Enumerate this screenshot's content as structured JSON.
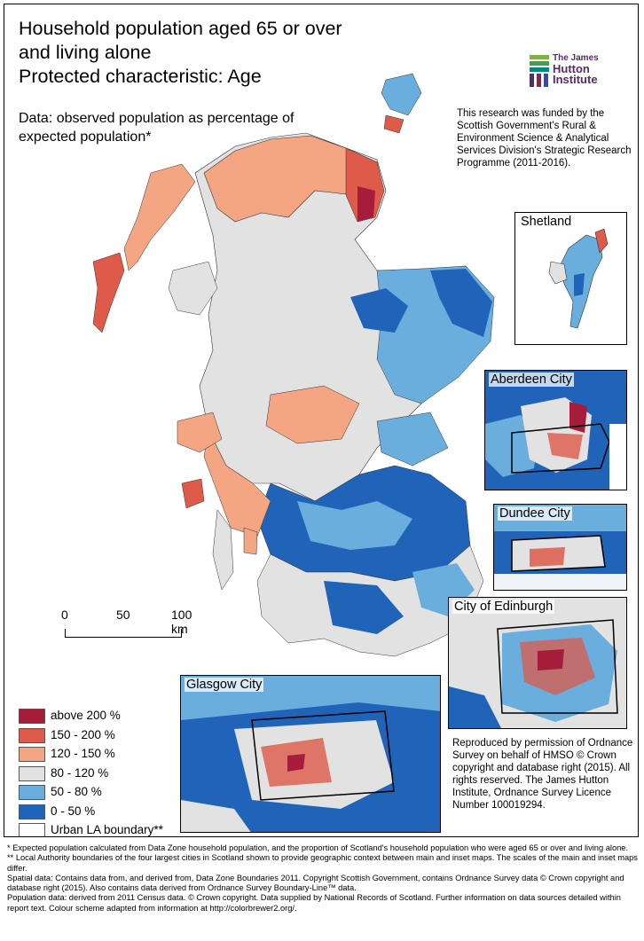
{
  "title_lines": [
    "Household population aged 65 or over",
    "and living alone",
    "Protected characteristic: Age"
  ],
  "subtitle": "Data: observed population as percentage of expected population*",
  "funding_text": "This research was funded by the Scottish Government's Rural & Environment Science & Analytical Services Division's Strategic Research Programme (2011-2016).",
  "logo": {
    "line1": "The James",
    "line2": "Hutton",
    "line3": "Institute",
    "icon": "james-hutton-logo-icon"
  },
  "scale_bar": {
    "labels": [
      "0",
      "50",
      "100 km"
    ]
  },
  "legend": [
    {
      "label": "above 200 %",
      "color": "#a51d3b"
    },
    {
      "label": "150 - 200 %",
      "color": "#de5a49"
    },
    {
      "label": "120 - 150 %",
      "color": "#f4a582"
    },
    {
      "label": "80 - 120 %",
      "color": "#e2e2e2"
    },
    {
      "label": "50 - 80 %",
      "color": "#6aaede"
    },
    {
      "label": "0 - 50 %",
      "color": "#1f64b8"
    },
    {
      "label": "Urban LA boundary**",
      "color": "#ffffff"
    }
  ],
  "insets": {
    "shetland": "Shetland",
    "aberdeen": "Aberdeen City",
    "dundee": "Dundee City",
    "edinburgh": "City of Edinburgh",
    "glasgow": "Glasgow City"
  },
  "reproduction_text": "Reproduced by permission of Ordnance Survey on behalf of HMSO © Crown copyright and database right (2015). All rights reserved. The James Hutton Institute, Ordnance Survey Licence Number 100019294.",
  "notes": [
    "* Expected population calculated from Data Zone household population, and the proportion of Scotland's household population who were aged 65 or over and living alone.",
    "** Local Authority boundaries of the four largest cities in Scotland shown to provide geographic context between main and inset maps. The scales of the main and inset maps differ.",
    "Spatial data: Contains data from, and derived from, Data Zone Boundaries 2011. Copyright Scottish Government, contains Ordnance Survey data © Crown copyright and database right (2015). Also contains data derived from Ordnance Survey Boundary-Line™ data.",
    "Population data: derived from 2011 Census data. © Crown copyright. Data supplied by National Records of Scotland. Further information on data sources detailed within report text. Colour scheme adapted from information at http://colorbrewer2.org/."
  ]
}
